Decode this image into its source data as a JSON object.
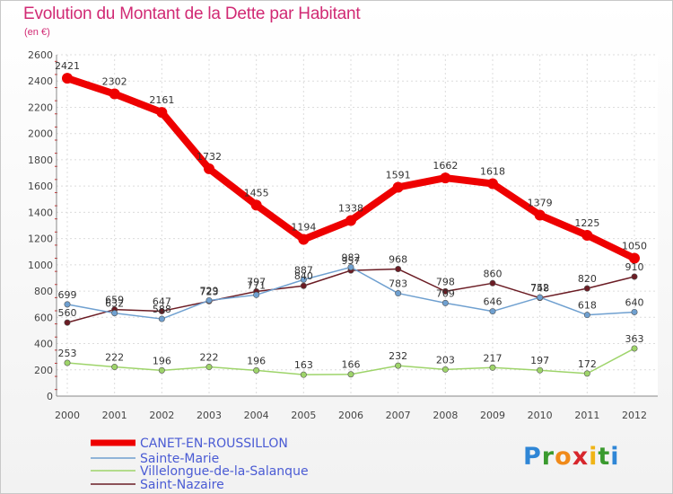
{
  "header": {
    "title": "Evolution du Montant de la Dette par Habitant",
    "subtitle": "(en €)"
  },
  "logo": {
    "text": "Proxiti",
    "letters": [
      {
        "ch": "P",
        "color": "#2f86d6"
      },
      {
        "ch": "r",
        "color": "#3a9a2e"
      },
      {
        "ch": "o",
        "color": "#f08a1a"
      },
      {
        "ch": "x",
        "color": "#d7262c"
      },
      {
        "ch": "i",
        "color": "#f0b416"
      },
      {
        "ch": "t",
        "color": "#3a9a2e"
      },
      {
        "ch": "i",
        "color": "#2f86d6"
      }
    ]
  },
  "chart_data": {
    "type": "line",
    "title": "Evolution du Montant de la Dette par Habitant",
    "subtitle": "(en €)",
    "xlabel": "",
    "ylabel": "",
    "ylim": [
      0,
      2600
    ],
    "yticks": [
      0,
      200,
      400,
      600,
      800,
      1000,
      1200,
      1400,
      1600,
      1800,
      2000,
      2200,
      2400,
      2600
    ],
    "grid": true,
    "legend_position": "bottom-left",
    "x": [
      "2000",
      "2001",
      "2002",
      "2003",
      "2004",
      "2005",
      "2006",
      "2007",
      "2008",
      "2009",
      "2010",
      "2011",
      "2012"
    ],
    "series": [
      {
        "name": "CANET-EN-ROUSSILLON",
        "color": "#ee0000",
        "values": [
          2421,
          2302,
          2161,
          1732,
          1455,
          1194,
          1338,
          1591,
          1662,
          1618,
          1379,
          1225,
          1050
        ],
        "labels": [
          "2421",
          "2302",
          "2161",
          "1732",
          "1455",
          "1194",
          "1338",
          "1591",
          "1662",
          "1618",
          "1379",
          "1225",
          "1050"
        ]
      },
      {
        "name": "Sainte-Marie",
        "color": "#6fa0d0",
        "values": [
          699,
          632,
          588,
          729,
          771,
          887,
          982,
          783,
          709,
          646,
          752,
          618,
          640
        ],
        "labels": [
          "699",
          "632",
          "588",
          "729",
          "771",
          "887",
          "982",
          "783",
          "709",
          "646",
          "752",
          "618",
          "640"
        ]
      },
      {
        "name": "Villelongue-de-la-Salanque",
        "color": "#9ed46a",
        "values": [
          253,
          222,
          196,
          222,
          196,
          163,
          166,
          232,
          203,
          217,
          197,
          172,
          363
        ],
        "labels": [
          "253",
          "222",
          "196",
          "222",
          "196",
          "163",
          "166",
          "232",
          "203",
          "217",
          "197",
          "172",
          "363"
        ]
      },
      {
        "name": "Saint-Nazaire",
        "color": "#6b1c24",
        "values": [
          560,
          659,
          647,
          723,
          797,
          840,
          957,
          968,
          798,
          860,
          748,
          820,
          910
        ],
        "labels": [
          "560",
          "659",
          "647",
          "723",
          "797",
          "840",
          "957",
          "968",
          "798",
          "860",
          "748",
          "820",
          "910"
        ]
      }
    ]
  }
}
